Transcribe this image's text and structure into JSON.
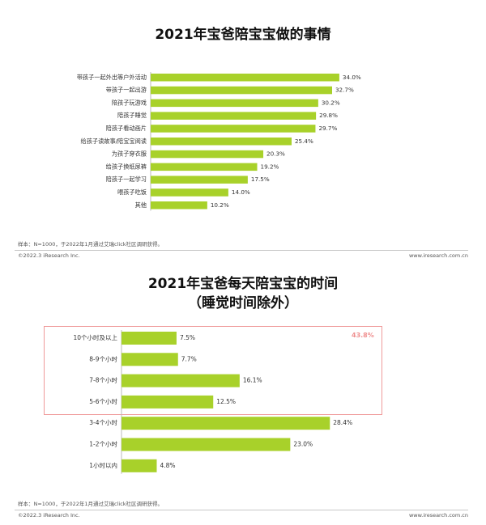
{
  "chart_data": [
    {
      "type": "bar",
      "orientation": "horizontal",
      "title": "2021年宝爸陪宝宝做的事情",
      "categories": [
        "带孩子一起外出等户外活动",
        "带孩子一起出游",
        "陪孩子玩游戏",
        "陪孩子睡觉",
        "陪孩子看动画片",
        "给孩子读故事/陪宝宝阅读",
        "为孩子穿衣服",
        "给孩子换纸尿裤",
        "陪孩子一起学习",
        "喂孩子吃饭",
        "其他"
      ],
      "values": [
        34.0,
        32.7,
        30.2,
        29.8,
        29.7,
        25.4,
        20.3,
        19.2,
        17.5,
        14.0,
        10.2
      ],
      "value_labels": [
        "34.0%",
        "32.7%",
        "30.2%",
        "29.8%",
        "29.7%",
        "25.4%",
        "20.3%",
        "19.2%",
        "17.5%",
        "14.0%",
        "10.2%"
      ],
      "xlim": [
        0,
        40
      ],
      "grid": false,
      "bar_color": "#a8d12a"
    },
    {
      "type": "bar",
      "orientation": "horizontal",
      "title": "2021年宝爸每天陪宝宝的时间",
      "subtitle": "（睡觉时间除外）",
      "categories": [
        "10个小时及以上",
        "8-9个小时",
        "7-8个小时",
        "5-6个小时",
        "3-4个小时",
        "1-2个小时",
        "1小时以内"
      ],
      "values": [
        7.5,
        7.7,
        16.1,
        12.5,
        28.4,
        23.0,
        4.8
      ],
      "value_labels": [
        "7.5%",
        "7.7%",
        "16.1%",
        "12.5%",
        "28.4%",
        "23.0%",
        "4.8%"
      ],
      "xlim": [
        0,
        34
      ],
      "grid": false,
      "bar_color": "#a8d12a",
      "annotation": {
        "text": "43.8%",
        "covers_categories": 4,
        "color": "#ef9a9a"
      }
    }
  ],
  "footer_top": {
    "note": "样本：N=1000，于2022年1月通过艾瑞click社区调研获得。",
    "copyright": "©2022.3 iResearch Inc.",
    "site": "www.iresearch.com.cn"
  },
  "footer_bottom": {
    "note": "样本：N=1000，于2022年1月通过艾瑞click社区调研获得。",
    "copyright": "©2022.3 iResearch Inc.",
    "site": "www.iresearch.com.cn"
  }
}
